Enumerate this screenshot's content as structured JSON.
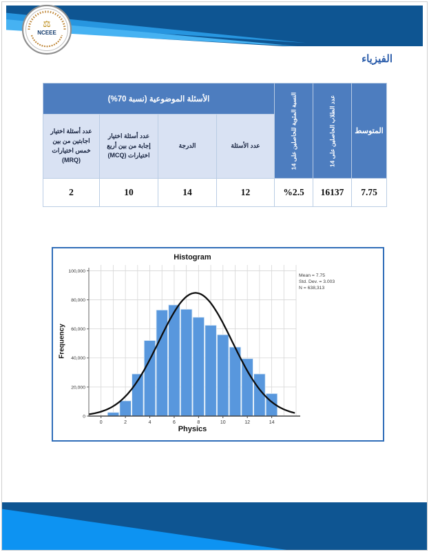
{
  "page": {
    "title": "الفيزياء"
  },
  "logo": {
    "org_abbr": "NCEEE",
    "emblem_icon": "⚖"
  },
  "colors": {
    "header_navy": "#0e5592",
    "ribbon_bright": "#46b2f2",
    "table_blue": "#4d7dbf",
    "table_light": "#d9e2f3",
    "title_blue": "#2a5caa",
    "chart_border": "#2f6db8"
  },
  "table": {
    "banner": "الأسئلة الموضوعية (نسبة 70%)",
    "columns": {
      "mean": "المتوسط",
      "students_above": "عدد الطلاب الحاصلين على 14",
      "percent_above": "النسبة المئوية للحاصلين على 14",
      "num_questions": "عدد الأسئلة",
      "score": "الدرجة",
      "mcq": "عدد أسئلة اختيار إجابة من بين أربع اختيارات (MCQ)",
      "mrq": "عدد أسئلة اختيار اجابتين من بين خمس اختيارات (MRQ)"
    },
    "values": {
      "mean": "7.75",
      "students_above": "16137",
      "percent_above": "%2.5",
      "num_questions": "12",
      "score": "14",
      "mcq": "10",
      "mrq": "2"
    }
  },
  "chart_data": {
    "type": "bar",
    "subtype": "histogram-with-normal-curve",
    "title": "Histogram",
    "xlabel": "Physics",
    "ylabel": "Frequency",
    "x": [
      1,
      2,
      3,
      4,
      5,
      6,
      7,
      8,
      9,
      10,
      11,
      12,
      13,
      14
    ],
    "values": [
      2500,
      10500,
      29000,
      52000,
      73000,
      76500,
      73500,
      68000,
      62500,
      56000,
      47500,
      39500,
      29000,
      15500
    ],
    "bar_color": "#5897dd",
    "xlim": [
      -1,
      16
    ],
    "ylim": [
      0,
      104000
    ],
    "x_ticks": [
      0,
      2,
      4,
      6,
      8,
      10,
      12,
      14
    ],
    "y_ticks": [
      0,
      20000,
      40000,
      60000,
      80000,
      100000
    ],
    "y_tick_labels": [
      "0",
      "20,000",
      "40,000",
      "60,000",
      "80,000",
      "100,000"
    ],
    "grid": true,
    "normal_curve": {
      "mean": 7.75,
      "sd": 3.003,
      "n": 638313
    },
    "stats_text": "Mean = 7.75\nStd. Dev. = 3.003\nN = 638,313"
  }
}
